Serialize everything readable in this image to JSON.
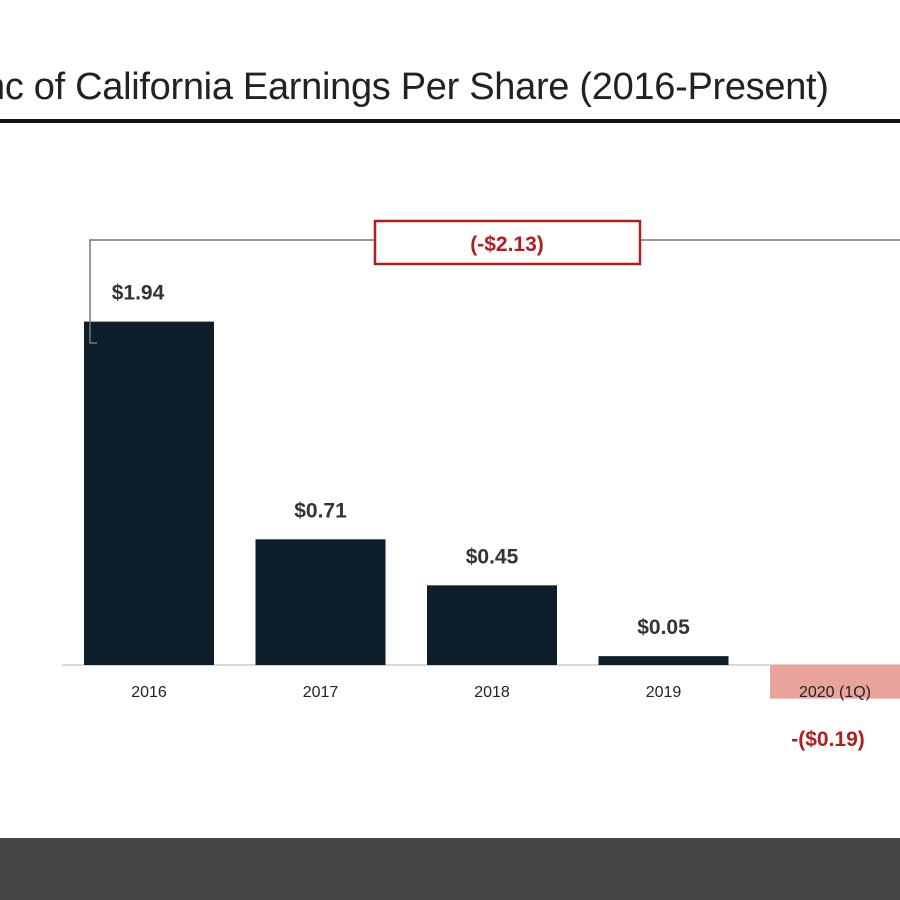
{
  "slide": {
    "title": "nc of California Earnings Per Share (2016-Present)"
  },
  "colors": {
    "positive_bar": "#0f1e2b",
    "negative_bar": "#e8a39c",
    "accent_red": "#b01e1e",
    "label_dark": "#333333",
    "axis": "#cccccc",
    "bracket": "#777777",
    "footer": "#454545"
  },
  "chart_data": {
    "type": "bar",
    "title": "",
    "xlabel": "",
    "ylabel": "",
    "categories": [
      "2016",
      "2017",
      "2018",
      "2019",
      "2020 (1Q)"
    ],
    "values": [
      1.94,
      0.71,
      0.45,
      0.05,
      -0.19
    ],
    "data_labels": [
      "$1.94",
      "$0.71",
      "$0.45",
      "$0.05",
      "-($0.19)"
    ],
    "ylim": [
      -0.19,
      2.4
    ],
    "grid": false,
    "legend": "none",
    "annotations": [
      {
        "type": "change-bracket",
        "text": "(-$2.13)",
        "from_category": "2016",
        "to_category": "2020 (1Q)"
      }
    ]
  }
}
